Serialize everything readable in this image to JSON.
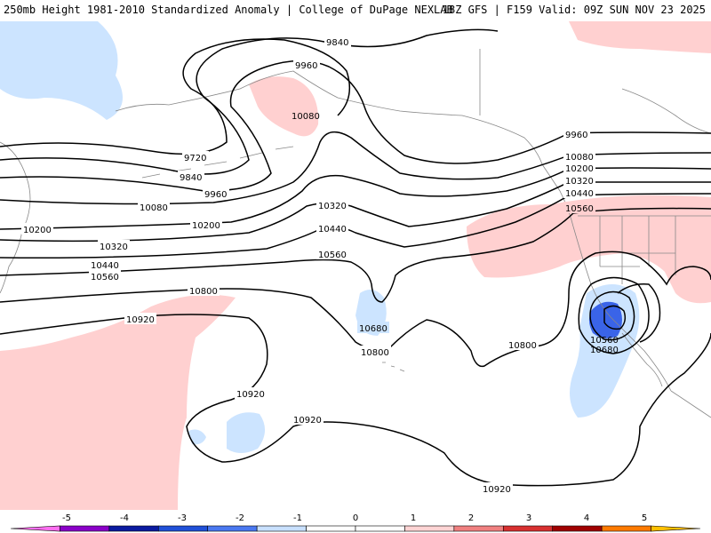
{
  "header": {
    "left": "250mb Height 1981-2010 Standardized Anomaly | College of DuPage NEXLAB",
    "right": "18Z GFS | F159 Valid: 09Z SUN NOV 23 2025"
  },
  "contours": {
    "c9840": "9840",
    "c9960": "9960",
    "c10080": "10080",
    "c9720": "9720",
    "c9840b": "9840",
    "c9960b": "9960",
    "c10080b": "10080",
    "c10200": "10200",
    "c10200b": "10200",
    "c10320": "10320",
    "c10320b": "10320",
    "c10440": "10440",
    "c10440b": "10440",
    "c10560": "10560",
    "c10560b": "10560",
    "c10800": "10800",
    "c10920": "10920",
    "c10680": "10680",
    "c10800b": "10800",
    "c10920b": "10920",
    "c10920c": "10920",
    "c10920d": "10920",
    "c10800c": "10800",
    "e9960": "9960",
    "e10080": "10080",
    "e10200": "10200",
    "e10320": "10320",
    "e10440": "10440",
    "e10560": "10560",
    "low10560": "10560",
    "low10680": "10680"
  },
  "colorbar": {
    "ticks": [
      "-5",
      "-4",
      "-3",
      "-2",
      "-1",
      "0",
      "1",
      "2",
      "3",
      "4",
      "5"
    ],
    "colors": [
      "#ff6ef0",
      "#8a00c8",
      "#0a1aa0",
      "#2050d8",
      "#4a78f0",
      "#c8e0ff",
      "#ffffff",
      "#ffffff",
      "#ffd4d4",
      "#f08080",
      "#d83030",
      "#a00000",
      "#ff7a00",
      "#ffc000"
    ]
  }
}
